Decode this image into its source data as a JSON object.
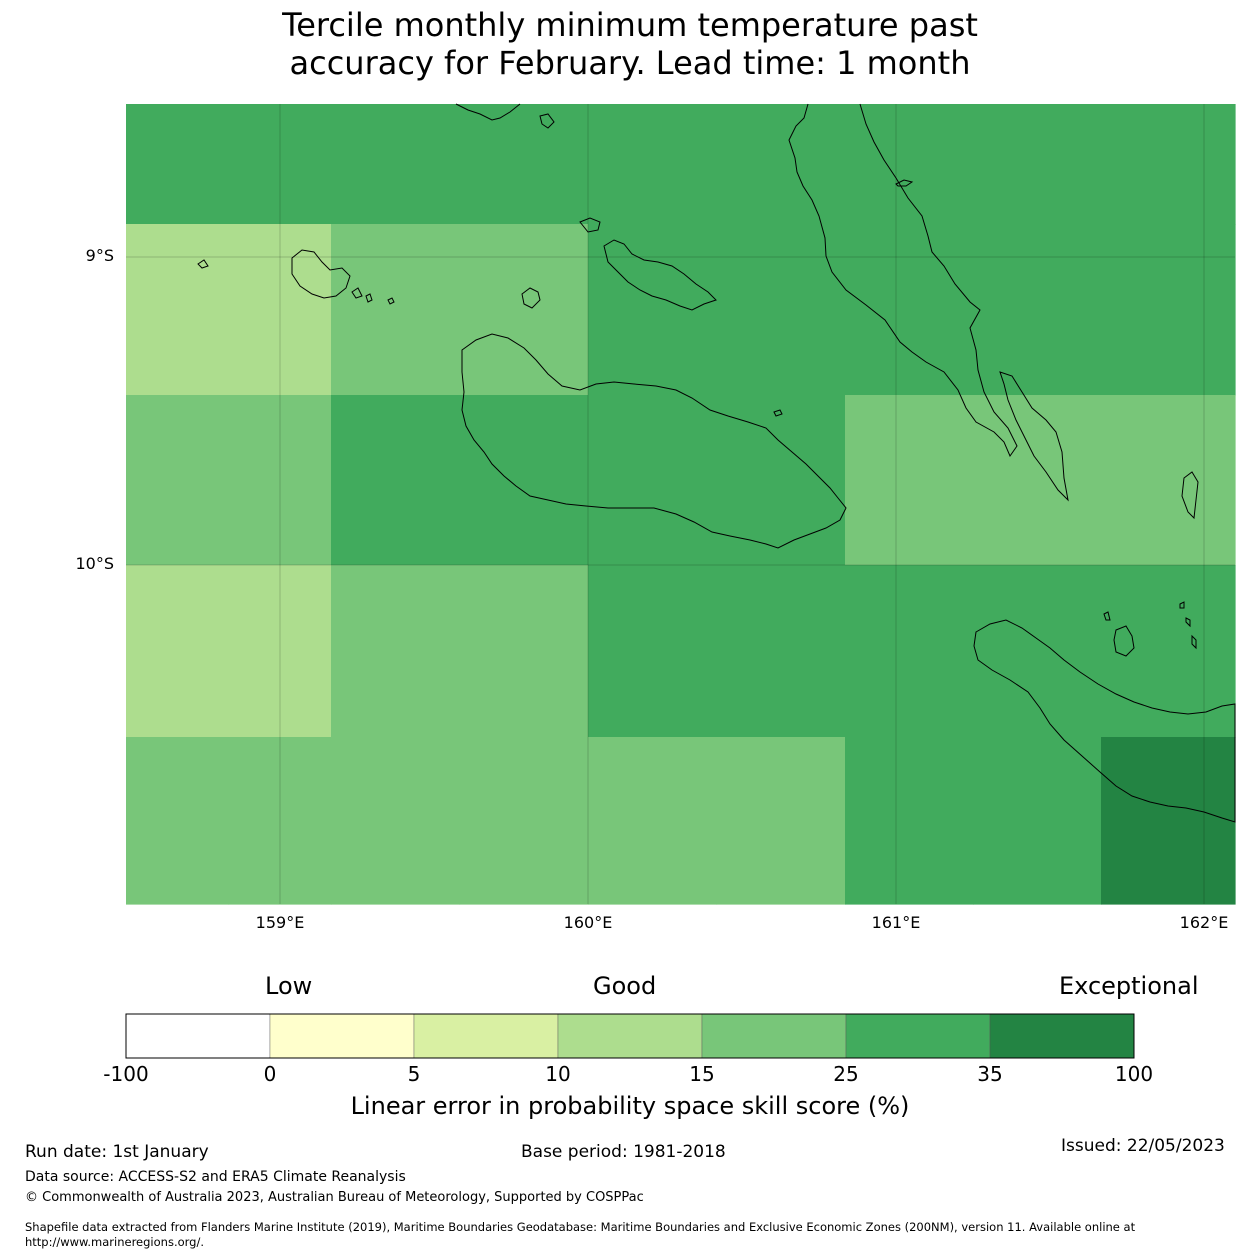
{
  "title_line1": "Tercile monthly minimum temperature past",
  "title_line2": "accuracy for February. Lead time: 1 month",
  "map": {
    "lat_labels": [
      "9°S",
      "10°S"
    ],
    "lon_labels": [
      "159°E",
      "160°E",
      "161°E",
      "162°E"
    ],
    "color_class_grid": [
      [
        5,
        5,
        5,
        5,
        5,
        5,
        5,
        5,
        5
      ],
      [
        3,
        3,
        4,
        4,
        5,
        5,
        5,
        5,
        5
      ],
      [
        4,
        4,
        5,
        5,
        5,
        5,
        4,
        4,
        4
      ],
      [
        3,
        3,
        4,
        4,
        5,
        5,
        5,
        5,
        5
      ],
      [
        4,
        4,
        4,
        4,
        4,
        4,
        5,
        5,
        6
      ]
    ],
    "shading_legend": {
      "3": "10–15",
      "4": "15–25",
      "5": "25–35",
      "6": "35–100"
    }
  },
  "colorbar": {
    "categories": [
      "Low",
      "Good",
      "Exceptional"
    ],
    "ticks": [
      "-100",
      "0",
      "5",
      "10",
      "15",
      "25",
      "35",
      "100"
    ],
    "colors": [
      "#ffffff",
      "#ffffcc",
      "#d9f0a3",
      "#addd8e",
      "#78c679",
      "#41ab5d",
      "#238443"
    ],
    "label": "Linear error in probability space skill score (%)"
  },
  "footer": {
    "run_date": "Run date: 1st January",
    "base_period": "Base period: 1981-2018",
    "issued": "Issued: 22/05/2023",
    "data_source": "Data source: ACCESS-S2 and ERA5 Climate Reanalysis",
    "copyright": "© Commonwealth of Australia 2023, Australian Bureau of Meteorology, Supported by COSPPac",
    "shapefile_line1": "Shapefile data extracted from Flanders Marine Institute (2019), Maritime Boundaries Geodatabase: Maritime Boundaries and Exclusive Economic Zones (200NM), version 11. Available online at",
    "shapefile_line2": "http://www.marineregions.org/."
  }
}
